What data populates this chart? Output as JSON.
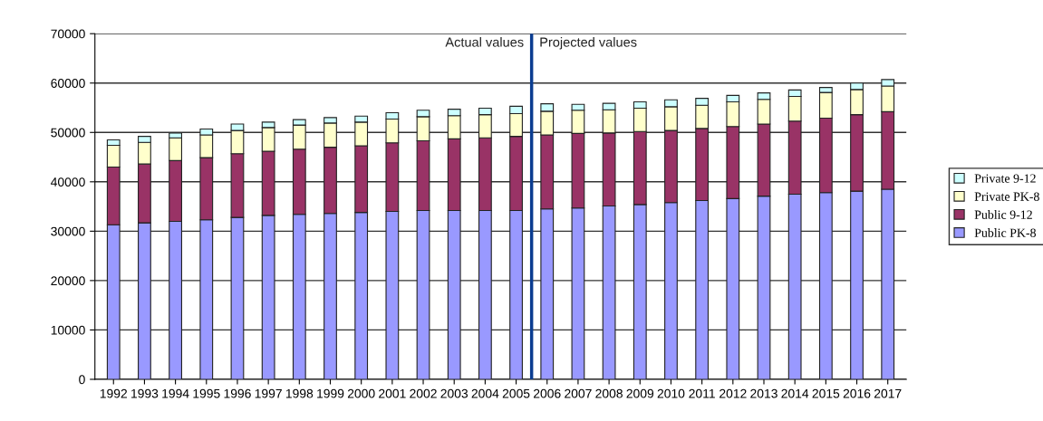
{
  "chart_data": {
    "type": "bar",
    "stacked": true,
    "categories": [
      "1992",
      "1993",
      "1994",
      "1995",
      "1996",
      "1997",
      "1998",
      "1999",
      "2000",
      "2001",
      "2002",
      "2003",
      "2004",
      "2005",
      "2006",
      "2007",
      "2008",
      "2009",
      "2010",
      "2011",
      "2012",
      "2013",
      "2014",
      "2015",
      "2016",
      "2017"
    ],
    "series": [
      {
        "name": "Public PK-8",
        "color": "#9999ff",
        "values": [
          31300,
          31700,
          32000,
          32300,
          32800,
          33200,
          33400,
          33600,
          33800,
          34000,
          34200,
          34200,
          34200,
          34200,
          34500,
          34700,
          35100,
          35400,
          35800,
          36200,
          36600,
          37100,
          37500,
          37800,
          38100,
          38500
        ]
      },
      {
        "name": "Public 9-12",
        "color": "#993366",
        "values": [
          11700,
          11900,
          12300,
          12600,
          12900,
          13000,
          13200,
          13400,
          13500,
          13900,
          14100,
          14500,
          14700,
          15000,
          15000,
          15100,
          14800,
          14800,
          14600,
          14600,
          14600,
          14600,
          14800,
          15100,
          15500,
          15700
        ]
      },
      {
        "name": "Private PK-8",
        "color": "#ffffcc",
        "values": [
          4400,
          4400,
          4600,
          4600,
          4700,
          4800,
          4900,
          4900,
          4800,
          4800,
          4900,
          4700,
          4700,
          4600,
          4800,
          4700,
          4700,
          4700,
          4800,
          4700,
          5000,
          5000,
          5000,
          5200,
          5100,
          5200
        ]
      },
      {
        "name": "Private 9-12",
        "color": "#ccffff",
        "values": [
          1100,
          1200,
          1000,
          1200,
          1300,
          1100,
          1100,
          1100,
          1200,
          1300,
          1300,
          1300,
          1300,
          1500,
          1500,
          1200,
          1300,
          1300,
          1400,
          1400,
          1300,
          1300,
          1300,
          1000,
          1300,
          1300
        ]
      }
    ],
    "ylim": [
      0,
      70000
    ],
    "yticks": [
      0,
      10000,
      20000,
      30000,
      40000,
      50000,
      60000,
      70000
    ],
    "grid": "y",
    "legend": "right",
    "ref_lines": [
      {
        "axis": "x",
        "value": "2006",
        "color": "#0b3d91",
        "line_style": "solid"
      }
    ],
    "annotations": [
      "Actual values",
      "Projected values"
    ]
  }
}
